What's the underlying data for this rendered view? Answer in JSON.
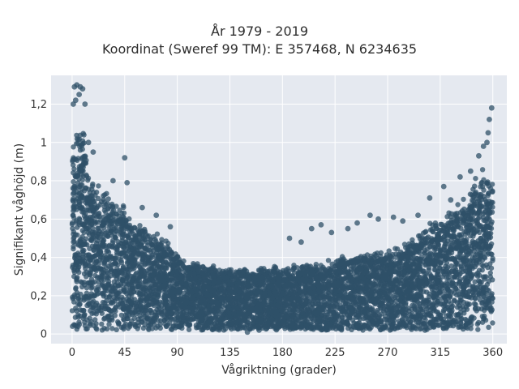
{
  "chart_data": {
    "type": "scatter",
    "title": "År 1979 - 2019",
    "subtitle": "Koordinat (Sweref 99 TM): E 357468, N 6234635",
    "xlabel": "Vågriktning (grader)",
    "ylabel": "Signifikant våghöjd (m)",
    "xlim": [
      -18,
      372
    ],
    "ylim": [
      -0.05,
      1.35
    ],
    "x_ticks": [
      0,
      45,
      90,
      135,
      180,
      225,
      270,
      315,
      360
    ],
    "x_tick_labels": [
      "0",
      "45",
      "90",
      "135",
      "180",
      "225",
      "270",
      "315",
      "360"
    ],
    "y_ticks": [
      0,
      0.2,
      0.4,
      0.6,
      0.8,
      1.0,
      1.2
    ],
    "y_tick_labels": [
      "0",
      "0,2",
      "0,4",
      "0,6",
      "0,8",
      "1",
      "1,2"
    ],
    "grid": true,
    "marker_color": "#2f5068",
    "background_color": "#e5e9f0",
    "envelope": {
      "description_units": "upper bound of dense point cloud (m) by direction (degrees)",
      "x": [
        0,
        5,
        10,
        15,
        20,
        30,
        40,
        45,
        50,
        60,
        70,
        80,
        90,
        100,
        120,
        135,
        150,
        180,
        210,
        225,
        240,
        270,
        290,
        300,
        315,
        330,
        340,
        350,
        355,
        360
      ],
      "y": [
        1.0,
        1.15,
        1.1,
        0.85,
        0.8,
        0.75,
        0.72,
        0.68,
        0.6,
        0.58,
        0.55,
        0.5,
        0.42,
        0.38,
        0.36,
        0.35,
        0.35,
        0.36,
        0.38,
        0.4,
        0.42,
        0.45,
        0.5,
        0.55,
        0.62,
        0.7,
        0.78,
        0.85,
        0.9,
        0.8
      ]
    },
    "outliers": [
      {
        "x": 2,
        "y": 1.29
      },
      {
        "x": 4,
        "y": 1.3
      },
      {
        "x": 7,
        "y": 1.29
      },
      {
        "x": 9,
        "y": 1.28
      },
      {
        "x": 1,
        "y": 1.2
      },
      {
        "x": 3,
        "y": 1.22
      },
      {
        "x": 6,
        "y": 1.25
      },
      {
        "x": 11,
        "y": 1.2
      },
      {
        "x": 14,
        "y": 1.0
      },
      {
        "x": 18,
        "y": 0.95
      },
      {
        "x": 45,
        "y": 0.92
      },
      {
        "x": 35,
        "y": 0.8
      },
      {
        "x": 47,
        "y": 0.79
      },
      {
        "x": 60,
        "y": 0.66
      },
      {
        "x": 72,
        "y": 0.62
      },
      {
        "x": 84,
        "y": 0.56
      },
      {
        "x": 186,
        "y": 0.5
      },
      {
        "x": 196,
        "y": 0.48
      },
      {
        "x": 205,
        "y": 0.55
      },
      {
        "x": 213,
        "y": 0.57
      },
      {
        "x": 222,
        "y": 0.53
      },
      {
        "x": 236,
        "y": 0.55
      },
      {
        "x": 244,
        "y": 0.58
      },
      {
        "x": 255,
        "y": 0.62
      },
      {
        "x": 262,
        "y": 0.6
      },
      {
        "x": 275,
        "y": 0.61
      },
      {
        "x": 283,
        "y": 0.59
      },
      {
        "x": 296,
        "y": 0.62
      },
      {
        "x": 306,
        "y": 0.71
      },
      {
        "x": 318,
        "y": 0.77
      },
      {
        "x": 324,
        "y": 0.7
      },
      {
        "x": 332,
        "y": 0.82
      },
      {
        "x": 341,
        "y": 0.85
      },
      {
        "x": 348,
        "y": 0.93
      },
      {
        "x": 352,
        "y": 0.98
      },
      {
        "x": 355,
        "y": 1.0
      },
      {
        "x": 357,
        "y": 1.12
      },
      {
        "x": 359,
        "y": 1.18
      },
      {
        "x": 356,
        "y": 1.05
      },
      {
        "x": 302,
        "y": 0.02
      },
      {
        "x": 150,
        "y": 0.01
      },
      {
        "x": 160,
        "y": 0.02
      }
    ]
  }
}
